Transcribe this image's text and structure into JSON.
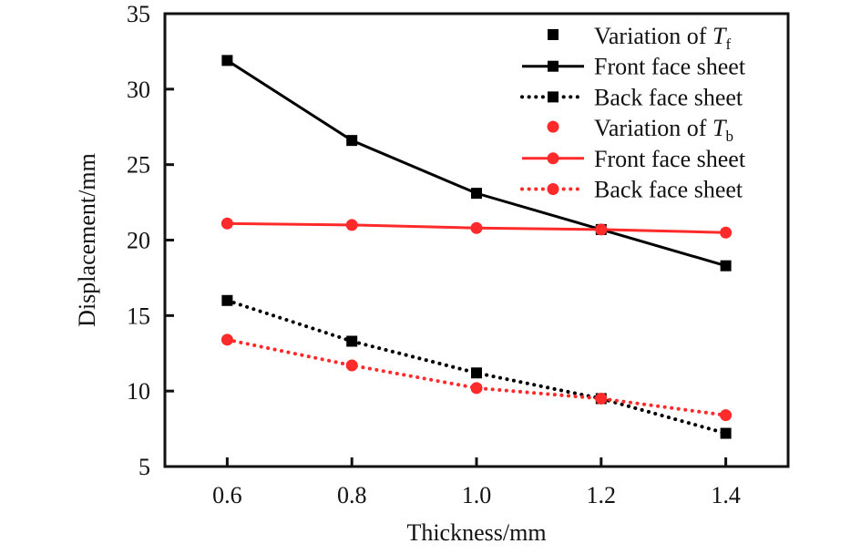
{
  "chart_data": {
    "type": "line",
    "title": "",
    "xlabel": "Thickness/mm",
    "ylabel": "Displacement/mm",
    "xlim": [
      0.5,
      1.5
    ],
    "ylim": [
      5,
      35
    ],
    "x": [
      0.6,
      0.8,
      1.0,
      1.2,
      1.4
    ],
    "xticks": [
      "0.6",
      "0.8",
      "1.0",
      "1.2",
      "1.4"
    ],
    "yticks": [
      "5",
      "10",
      "15",
      "20",
      "25",
      "30",
      "35"
    ],
    "grid": false,
    "legend_position": "top-right",
    "legend": [
      {
        "label": "Variation of ",
        "italic": "T",
        "sub": "f",
        "kind": "header",
        "marker": "square",
        "color": "#000000"
      },
      {
        "label": "Front face sheet",
        "kind": "series",
        "series_index": 0
      },
      {
        "label": "Back face sheet",
        "kind": "series",
        "series_index": 1
      },
      {
        "label": "Variation of ",
        "italic": "T",
        "sub": "b",
        "kind": "header",
        "marker": "circle",
        "color": "#ff2a2a"
      },
      {
        "label": "Front face sheet",
        "kind": "series",
        "series_index": 2
      },
      {
        "label": "Back face sheet",
        "kind": "series",
        "series_index": 3
      }
    ],
    "series": [
      {
        "name": "Variation of Tf - Front face sheet",
        "color": "#000000",
        "marker": "square",
        "line": "solid",
        "values": [
          31.9,
          26.6,
          23.1,
          20.7,
          18.3
        ]
      },
      {
        "name": "Variation of Tf - Back face sheet",
        "color": "#000000",
        "marker": "square",
        "line": "dotted",
        "values": [
          16.0,
          13.3,
          11.2,
          9.5,
          7.2
        ]
      },
      {
        "name": "Variation of Tb - Front face sheet",
        "color": "#ff2a2a",
        "marker": "circle",
        "line": "solid",
        "values": [
          21.1,
          21.0,
          20.8,
          20.7,
          20.5
        ]
      },
      {
        "name": "Variation of Tb - Back face sheet",
        "color": "#ff2a2a",
        "marker": "circle",
        "line": "dotted",
        "values": [
          13.4,
          11.7,
          10.2,
          9.5,
          8.4
        ]
      }
    ]
  }
}
